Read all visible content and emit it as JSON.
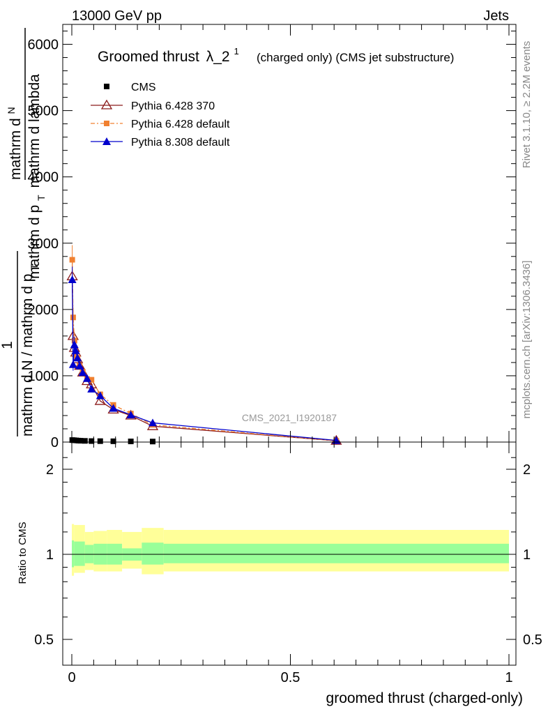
{
  "header": {
    "energy_label": "13000 GeV pp",
    "category_label": "Jets"
  },
  "side_labels": {
    "rivet": "Rivet 3.1.10, ≥ 2.2M events",
    "mcplots": "mcplots.cern.ch [arXiv:1306.3436]"
  },
  "chart_data": [
    {
      "type": "line",
      "panel": "main",
      "title_main": "Groomed thrust",
      "title_lambda": "λ_2",
      "title_sup": "1",
      "title_suffix": "(charged only) (CMS jet substructure)",
      "ylabel_top": "mathrm d",
      "ylabel_N": "N",
      "ylabel_right": "mathrm d p",
      "ylabel_sub": "T",
      "ylabel_tail": "mathrm d lambda",
      "ylabel_one": "1",
      "ylabel_bottom": "mathrm d N / mathrm d p",
      "ylabel_bottom_sub": "T",
      "analysis_tag": "CMS_2021_I1920187",
      "xlim": [
        0,
        1
      ],
      "ylim": [
        0,
        6300
      ],
      "yticks": [
        0,
        1000,
        2000,
        3000,
        4000,
        5000,
        6000
      ],
      "ytick_labels": [
        "0",
        "1000",
        "2000",
        "3000",
        "4000",
        "5000",
        "6000"
      ],
      "legend_position": "top-left",
      "series": [
        {
          "name": "CMS",
          "color": "#000000",
          "marker": "square",
          "x": [
            0.001,
            0.005,
            0.01,
            0.015,
            0.02,
            0.03,
            0.045,
            0.065,
            0.095,
            0.135,
            0.185
          ],
          "y": [
            30,
            28,
            25,
            22,
            20,
            18,
            15,
            14,
            12,
            10,
            8
          ]
        },
        {
          "name": "Pythia 6.428 370",
          "color": "#8b1a1a",
          "marker": "open-triangle",
          "x": [
            0.001,
            0.003,
            0.006,
            0.009,
            0.013,
            0.018,
            0.025,
            0.035,
            0.045,
            0.065,
            0.095,
            0.135,
            0.185,
            0.605
          ],
          "y": [
            2500,
            1600,
            1420,
            1350,
            1250,
            1150,
            1050,
            920,
            870,
            620,
            490,
            400,
            240,
            20
          ]
        },
        {
          "name": "Pythia 6.428 default",
          "color": "#f08030",
          "marker": "filled-square",
          "x": [
            0.001,
            0.003,
            0.006,
            0.009,
            0.013,
            0.018,
            0.025,
            0.035,
            0.045,
            0.065,
            0.095,
            0.135,
            0.185,
            0.605
          ],
          "y": [
            2750,
            1880,
            1530,
            1300,
            1270,
            1150,
            1060,
            950,
            940,
            720,
            560,
            430,
            260,
            18
          ]
        },
        {
          "name": "Pythia 8.308 default",
          "color": "#0000cc",
          "marker": "filled-triangle",
          "x": [
            0.001,
            0.003,
            0.006,
            0.009,
            0.013,
            0.018,
            0.025,
            0.035,
            0.045,
            0.065,
            0.095,
            0.135,
            0.185,
            0.605
          ],
          "y": [
            2450,
            1170,
            1470,
            1380,
            1270,
            1150,
            1050,
            960,
            800,
            700,
            510,
            410,
            290,
            25
          ]
        }
      ]
    },
    {
      "type": "area",
      "panel": "ratio",
      "ylabel": "Ratio to CMS",
      "xlabel": "groomed thrust (charged-only)",
      "xlim": [
        0,
        1
      ],
      "ylim": [
        0.4,
        2.3
      ],
      "yticks": [
        0.5,
        1,
        2
      ],
      "ytick_labels": [
        "0.5",
        "1",
        "2"
      ],
      "xticks": [
        0,
        0.5,
        1
      ],
      "xtick_labels": [
        "0",
        "0.5",
        "1"
      ],
      "reference_line": 1,
      "bands": {
        "inner_color": "#99ff99",
        "outer_color": "#ffff99",
        "bins": [
          {
            "x0": 0.0,
            "x1": 0.005,
            "outer": [
              0.84,
              1.28
            ],
            "inner": [
              0.9,
              1.12
            ]
          },
          {
            "x0": 0.005,
            "x1": 0.03,
            "outer": [
              0.86,
              1.27
            ],
            "inner": [
              0.91,
              1.11
            ]
          },
          {
            "x0": 0.03,
            "x1": 0.05,
            "outer": [
              0.88,
              1.2
            ],
            "inner": [
              0.93,
              1.08
            ]
          },
          {
            "x0": 0.05,
            "x1": 0.08,
            "outer": [
              0.87,
              1.21
            ],
            "inner": [
              0.92,
              1.09
            ]
          },
          {
            "x0": 0.08,
            "x1": 0.115,
            "outer": [
              0.87,
              1.22
            ],
            "inner": [
              0.92,
              1.09
            ]
          },
          {
            "x0": 0.115,
            "x1": 0.16,
            "outer": [
              0.89,
              1.2
            ],
            "inner": [
              0.95,
              1.05
            ]
          },
          {
            "x0": 0.16,
            "x1": 0.21,
            "outer": [
              0.85,
              1.24
            ],
            "inner": [
              0.92,
              1.1
            ]
          },
          {
            "x0": 0.21,
            "x1": 1.0,
            "outer": [
              0.87,
              1.22
            ],
            "inner": [
              0.93,
              1.09
            ]
          }
        ]
      }
    }
  ]
}
